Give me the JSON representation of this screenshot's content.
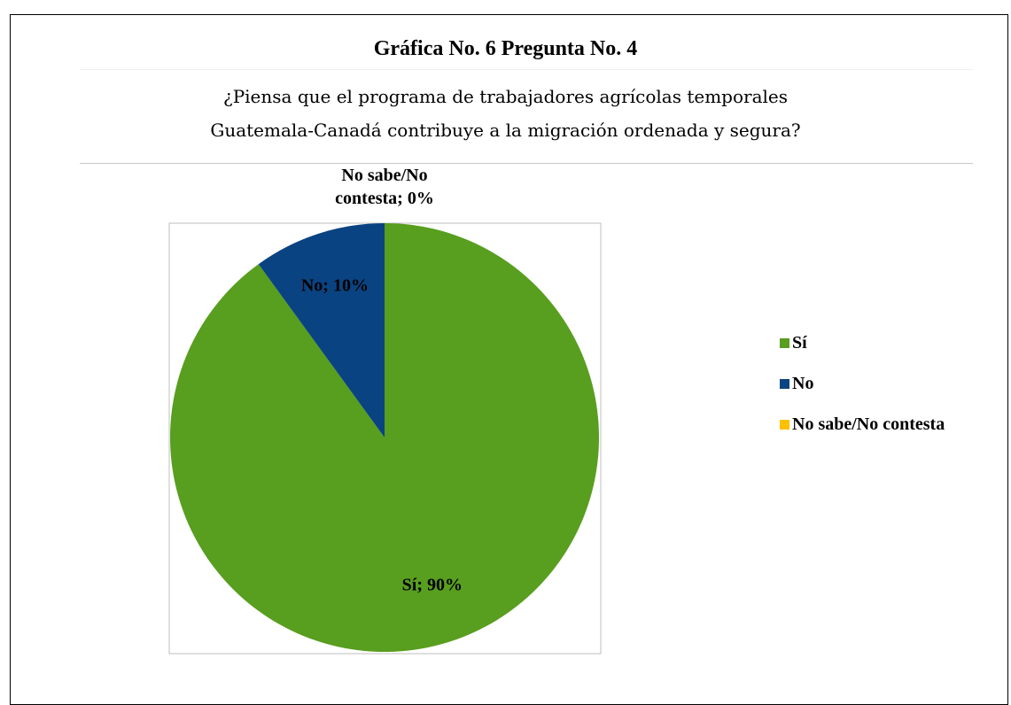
{
  "page": {
    "title": "Gráfica No. 6 Pregunta No. 4",
    "subtitle_lines": [
      "¿Piensa que el programa de trabajadores agrícolas temporales",
      "Guatemala-Canadá contribuye a la migración ordenada y segura?"
    ]
  },
  "chart_data": {
    "type": "pie",
    "title": "Gráfica No. 6 Pregunta No. 4",
    "subtitle": "¿Piensa que el programa de trabajadores agrícolas temporales Guatemala-Canadá contribuye a la migración ordenada y segura?",
    "categories": [
      "Sí",
      "No",
      "No sabe/No contesta"
    ],
    "values": [
      90,
      10,
      0
    ],
    "unit": "%",
    "colors": [
      "#589e1f",
      "#0a4381",
      "#ffc000"
    ],
    "data_labels": [
      "Sí; 90%",
      "No; 10%",
      "No sabe/No contesta; 0%"
    ],
    "data_label_lines": [
      [
        "Sí; 90%"
      ],
      [
        "No; 10%"
      ],
      [
        "No sabe/No",
        "contesta; 0%"
      ]
    ],
    "legend_position": "right"
  }
}
